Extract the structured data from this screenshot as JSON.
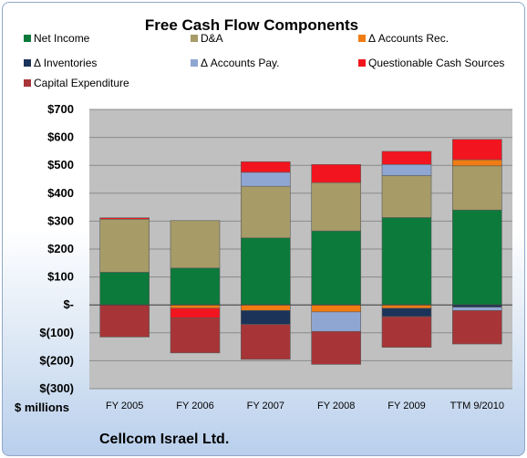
{
  "chart_data": {
    "type": "bar",
    "stacked": true,
    "title": "Free Cash Flow Components",
    "ylabel": "$ millions",
    "footer": "Cellcom Israel Ltd.",
    "ylim": [
      -300,
      700
    ],
    "y_ticks": [
      {
        "value": 700,
        "label": "$700"
      },
      {
        "value": 600,
        "label": "$600"
      },
      {
        "value": 500,
        "label": "$500"
      },
      {
        "value": 400,
        "label": "$400"
      },
      {
        "value": 300,
        "label": "$300"
      },
      {
        "value": 200,
        "label": "$200"
      },
      {
        "value": 100,
        "label": "$100"
      },
      {
        "value": 0,
        "label": "$-"
      },
      {
        "value": -100,
        "label": "$(100)"
      },
      {
        "value": -200,
        "label": "$(200)"
      },
      {
        "value": -300,
        "label": "$(300)"
      }
    ],
    "categories": [
      "FY 2005",
      "FY 2006",
      "FY 2007",
      "FY 2008",
      "FY 2009",
      "TTM 9/2010"
    ],
    "series": [
      {
        "name": "Net Income",
        "color": "#0c7a3a",
        "values": [
          117,
          132,
          240,
          265,
          313,
          340
        ]
      },
      {
        "name": "D&A",
        "color": "#a79b68",
        "values": [
          190,
          170,
          185,
          173,
          150,
          158
        ]
      },
      {
        "name": "Δ Accounts Rec.",
        "color": "#f07b12",
        "values": [
          0,
          -12,
          -20,
          -25,
          -12,
          22
        ]
      },
      {
        "name": "Δ Inventories",
        "color": "#1b3358",
        "values": [
          0,
          0,
          -50,
          0,
          -30,
          -8
        ]
      },
      {
        "name": "Δ Accounts Pay.",
        "color": "#8fa6d2",
        "values": [
          0,
          0,
          50,
          -70,
          40,
          -12
        ]
      },
      {
        "name": "Questionable Cash Sources",
        "color": "#f2151f",
        "values": [
          5,
          -35,
          38,
          65,
          47,
          73
        ]
      },
      {
        "name": "Capital Expenditure",
        "color": "#a73537",
        "values": [
          -115,
          -125,
          -125,
          -118,
          -110,
          -120
        ]
      }
    ]
  }
}
